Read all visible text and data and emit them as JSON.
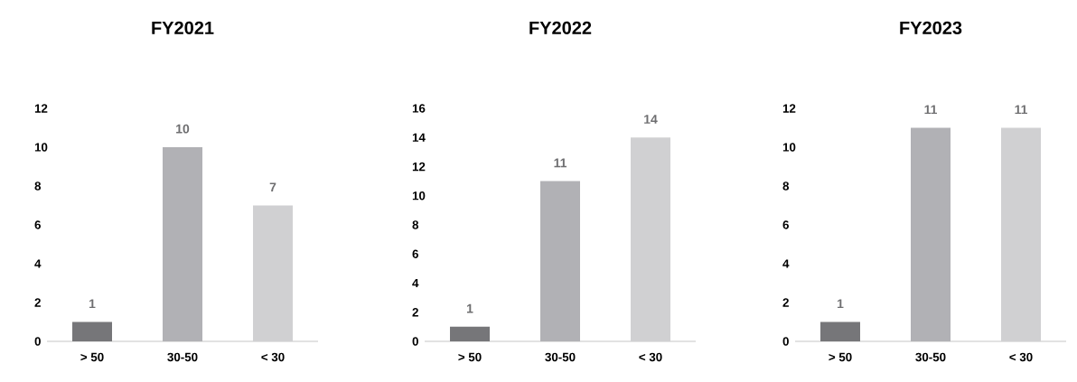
{
  "chart_data": [
    {
      "type": "bar",
      "title": "FY2021",
      "categories": [
        "> 50",
        "30-50",
        "< 30"
      ],
      "values": [
        1,
        10,
        7
      ],
      "colors": [
        "#767679",
        "#b1b1b5",
        "#d0d0d2"
      ],
      "ylim": [
        0,
        12
      ],
      "yticks": [
        0,
        2,
        4,
        6,
        8,
        10,
        12
      ],
      "data_labels": true,
      "grid": false
    },
    {
      "type": "bar",
      "title": "FY2022",
      "categories": [
        "> 50",
        "30-50",
        "< 30"
      ],
      "values": [
        1,
        11,
        14
      ],
      "colors": [
        "#767679",
        "#b1b1b5",
        "#d0d0d2"
      ],
      "ylim": [
        0,
        16
      ],
      "yticks": [
        0,
        2,
        4,
        6,
        8,
        10,
        12,
        14,
        16
      ],
      "data_labels": true,
      "grid": false
    },
    {
      "type": "bar",
      "title": "FY2023",
      "categories": [
        "> 50",
        "30-50",
        "< 30"
      ],
      "values": [
        1,
        11,
        11
      ],
      "colors": [
        "#767679",
        "#b1b1b5",
        "#d0d0d2"
      ],
      "ylim": [
        0,
        12
      ],
      "yticks": [
        0,
        2,
        4,
        6,
        8,
        10,
        12
      ],
      "data_labels": true,
      "grid": false
    }
  ]
}
